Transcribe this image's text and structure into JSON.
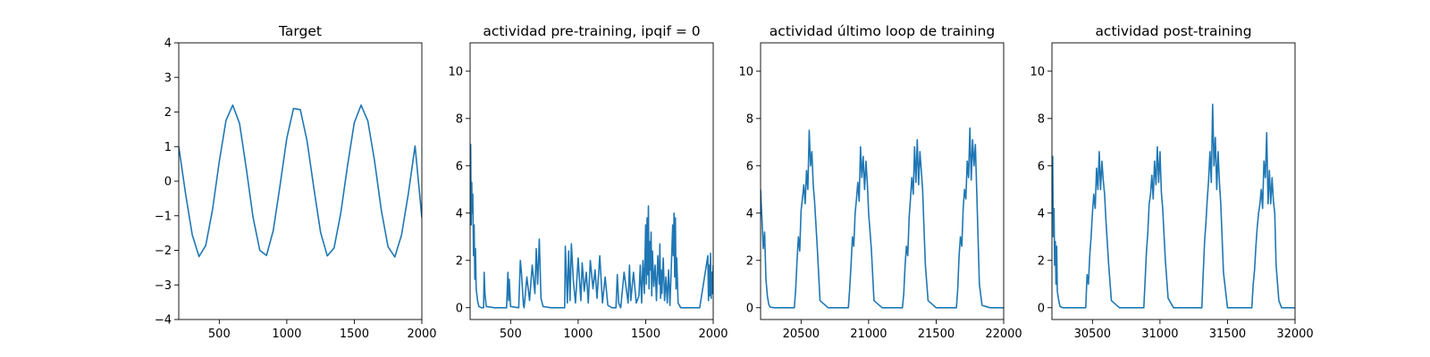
{
  "figure": {
    "background": "#ffffff",
    "line_color": "#1f77b4"
  },
  "chart_data": [
    {
      "type": "line",
      "title": "Target",
      "xlim": [
        200,
        2000
      ],
      "ylim": [
        -4,
        4
      ],
      "xticks": [
        500,
        1000,
        1500,
        2000
      ],
      "yticks": [
        -4,
        -3,
        -2,
        -1,
        0,
        1,
        2,
        3,
        4
      ],
      "xtick_labels": [
        "500",
        "1000",
        "1500",
        "2000"
      ],
      "ytick_labels": [
        "−4",
        "−3",
        "−2",
        "−1",
        "0",
        "1",
        "2",
        "3",
        "4"
      ],
      "grid": false,
      "legend": "none",
      "series": [
        {
          "x": [
            200,
            250,
            300,
            350,
            400,
            450,
            500,
            550,
            600,
            650,
            700,
            750,
            800,
            850,
            900,
            950,
            1000,
            1050,
            1100,
            1150,
            1200,
            1250,
            1300,
            1350,
            1400,
            1450,
            1500,
            1550,
            1600,
            1650,
            1700,
            1750,
            1800,
            1850,
            1900,
            1950,
            2000
          ],
          "y": [
            1.0,
            -0.36,
            -1.55,
            -2.18,
            -1.86,
            -0.82,
            0.56,
            1.76,
            2.2,
            1.67,
            0.36,
            -1.04,
            -2.0,
            -2.15,
            -1.42,
            -0.13,
            1.24,
            2.1,
            2.07,
            1.16,
            -0.19,
            -1.48,
            -2.16,
            -1.93,
            -0.92,
            0.46,
            1.69,
            2.2,
            1.74,
            0.58,
            -0.85,
            -1.9,
            -2.19,
            -1.55,
            -0.36,
            1.02,
            -1.05
          ]
        }
      ]
    },
    {
      "type": "line",
      "title": "actividad pre-training, ipqif = 0",
      "xlim": [
        200,
        2000
      ],
      "ylim": [
        -0.5,
        11.2
      ],
      "xticks": [
        500,
        1000,
        1500,
        2000
      ],
      "yticks": [
        0,
        2,
        4,
        6,
        8,
        10
      ],
      "xtick_labels": [
        "500",
        "1000",
        "1500",
        "2000"
      ],
      "ytick_labels": [
        "0",
        "2",
        "4",
        "6",
        "8",
        "10"
      ],
      "grid": false,
      "legend": "none",
      "series": [
        {
          "x": [
            200,
            204,
            208,
            212,
            216,
            220,
            225,
            230,
            235,
            240,
            245,
            255,
            265,
            285,
            300,
            304,
            310,
            320,
            380,
            400,
            470,
            480,
            485,
            490,
            500,
            560,
            572,
            580,
            595,
            600,
            620,
            640,
            660,
            680,
            690,
            700,
            712,
            725,
            740,
            800,
            900,
            905,
            912,
            920,
            930,
            940,
            950,
            965,
            980,
            1000,
            1020,
            1030,
            1045,
            1060,
            1075,
            1090,
            1110,
            1125,
            1140,
            1160,
            1180,
            1200,
            1220,
            1250,
            1280,
            1290,
            1300,
            1315,
            1340,
            1370,
            1380,
            1390,
            1410,
            1430,
            1450,
            1460,
            1470,
            1480,
            1490,
            1500,
            1505,
            1510,
            1515,
            1520,
            1525,
            1530,
            1535,
            1540,
            1545,
            1550,
            1560,
            1570,
            1580,
            1590,
            1600,
            1605,
            1610,
            1615,
            1620,
            1630,
            1640,
            1650,
            1660,
            1670,
            1680,
            1690,
            1700,
            1705,
            1710,
            1715,
            1720,
            1725,
            1730,
            1740,
            1760,
            1800,
            1900,
            1960,
            1965,
            1970,
            1975,
            1980,
            1985,
            1990,
            1995,
            2000
          ],
          "y": [
            5.5,
            6.9,
            3.5,
            5.3,
            4.0,
            4.8,
            2.2,
            3.5,
            1.2,
            2.5,
            0.8,
            0.3,
            0.05,
            0.0,
            0.0,
            1.5,
            0.6,
            0.05,
            0.0,
            0.0,
            0.0,
            1.5,
            0.3,
            1.2,
            0.05,
            0.0,
            2.0,
            1.5,
            0.1,
            0.0,
            1.3,
            0.3,
            1.8,
            0.6,
            2.5,
            1.0,
            2.9,
            0.4,
            0.05,
            0.0,
            0.0,
            2.6,
            1.6,
            0.2,
            2.4,
            0.3,
            2.7,
            1.1,
            0.2,
            2.1,
            0.3,
            1.9,
            0.7,
            1.5,
            0.2,
            2.0,
            0.8,
            1.6,
            0.4,
            2.2,
            0.2,
            1.3,
            0.1,
            0.0,
            0.0,
            1.4,
            0.2,
            0.0,
            1.5,
            0.2,
            1.8,
            0.3,
            1.5,
            0.2,
            0.5,
            1.8,
            0.2,
            2.0,
            0.6,
            3.5,
            1.0,
            3.8,
            1.4,
            4.3,
            0.8,
            2.8,
            1.6,
            3.2,
            0.5,
            2.4,
            0.9,
            1.8,
            0.3,
            2.2,
            1.0,
            2.7,
            0.4,
            1.6,
            0.6,
            2.1,
            0.3,
            1.3,
            0.2,
            1.6,
            0.1,
            1.8,
            3.5,
            2.2,
            4.0,
            1.3,
            3.8,
            0.8,
            2.1,
            0.2,
            0.0,
            0.0,
            0.0,
            2.2,
            0.3,
            1.8,
            0.5,
            2.3,
            0.4,
            1.5,
            0.6,
            1.8
          ]
        }
      ]
    },
    {
      "type": "line",
      "title": "actividad último loop de training",
      "xlim": [
        20200,
        22000
      ],
      "ylim": [
        -0.5,
        11.2
      ],
      "xticks": [
        20500,
        21000,
        21500,
        22000
      ],
      "yticks": [
        0,
        2,
        4,
        6,
        8,
        10
      ],
      "xtick_labels": [
        "20500",
        "21000",
        "21500",
        "22000"
      ],
      "ytick_labels": [
        "0",
        "2",
        "4",
        "6",
        "8",
        "10"
      ],
      "grid": false,
      "legend": "none",
      "series": [
        {
          "x": [
            20200,
            20205,
            20210,
            20220,
            20230,
            20240,
            20250,
            20260,
            20270,
            20300,
            20450,
            20460,
            20470,
            20480,
            20490,
            20500,
            20510,
            20520,
            20530,
            20540,
            20550,
            20560,
            20570,
            20580,
            20590,
            20600,
            20620,
            20640,
            20700,
            20850,
            20860,
            20870,
            20880,
            20890,
            20900,
            20910,
            20920,
            20930,
            20940,
            20950,
            20960,
            20970,
            20980,
            20990,
            21000,
            21020,
            21040,
            21100,
            21250,
            21260,
            21270,
            21280,
            21290,
            21300,
            21310,
            21320,
            21330,
            21340,
            21350,
            21360,
            21370,
            21380,
            21390,
            21400,
            21410,
            21420,
            21440,
            21500,
            21650,
            21660,
            21670,
            21680,
            21690,
            21700,
            21710,
            21720,
            21730,
            21740,
            21750,
            21760,
            21770,
            21780,
            21790,
            21800,
            21820,
            21840,
            21900,
            22000
          ],
          "y": [
            5.0,
            4.3,
            3.8,
            2.5,
            3.2,
            1.2,
            0.5,
            0.15,
            0.03,
            0.0,
            0.0,
            0.8,
            2.0,
            3.0,
            2.4,
            4.1,
            4.6,
            5.2,
            4.4,
            5.8,
            5.0,
            7.5,
            6.0,
            6.6,
            5.2,
            4.5,
            2.5,
            0.3,
            0.0,
            0.0,
            0.8,
            1.8,
            3.0,
            2.6,
            4.0,
            4.6,
            5.3,
            4.5,
            6.8,
            5.5,
            6.4,
            5.0,
            6.2,
            5.3,
            4.0,
            2.5,
            0.3,
            0.0,
            0.0,
            0.6,
            1.8,
            2.6,
            2.2,
            3.8,
            4.6,
            5.5,
            4.8,
            6.8,
            5.3,
            7.1,
            5.2,
            6.6,
            5.8,
            5.0,
            3.4,
            1.8,
            0.3,
            0.0,
            0.0,
            0.8,
            2.2,
            3.0,
            2.6,
            4.2,
            5.0,
            4.6,
            6.2,
            5.5,
            7.6,
            5.4,
            7.1,
            6.0,
            6.9,
            5.0,
            1.0,
            0.1,
            0.0,
            0.0
          ]
        }
      ]
    },
    {
      "type": "line",
      "title": "actividad post-training",
      "xlim": [
        30200,
        32000
      ],
      "ylim": [
        -0.5,
        11.2
      ],
      "xticks": [
        30500,
        31000,
        31500,
        32000
      ],
      "yticks": [
        0,
        2,
        4,
        6,
        8,
        10
      ],
      "xtick_labels": [
        "30500",
        "31000",
        "31500",
        "32000"
      ],
      "ytick_labels": [
        "0",
        "2",
        "4",
        "6",
        "8",
        "10"
      ],
      "grid": false,
      "legend": "none",
      "series": [
        {
          "x": [
            30200,
            30205,
            30210,
            30215,
            30220,
            30225,
            30230,
            30235,
            30240,
            30250,
            30260,
            30280,
            30450,
            30460,
            30470,
            30480,
            30490,
            30500,
            30510,
            30520,
            30530,
            30540,
            30550,
            30560,
            30570,
            30580,
            30590,
            30600,
            30620,
            30640,
            30700,
            30880,
            30890,
            30900,
            30910,
            30920,
            30930,
            30940,
            30950,
            30960,
            30970,
            30980,
            30990,
            31000,
            31010,
            31020,
            31040,
            31060,
            31100,
            31310,
            31320,
            31330,
            31340,
            31350,
            31360,
            31370,
            31380,
            31390,
            31400,
            31410,
            31420,
            31430,
            31440,
            31450,
            31470,
            31500,
            31680,
            31690,
            31700,
            31710,
            31720,
            31730,
            31740,
            31750,
            31760,
            31770,
            31780,
            31790,
            31800,
            31810,
            31820,
            31830,
            31840,
            31850,
            31860,
            31880,
            31900,
            32000
          ],
          "y": [
            4.8,
            6.4,
            3.0,
            4.2,
            1.8,
            2.8,
            1.0,
            2.6,
            0.7,
            0.3,
            0.05,
            0.0,
            0.0,
            1.4,
            1.0,
            2.2,
            3.0,
            4.0,
            4.8,
            4.2,
            5.9,
            5.0,
            6.6,
            5.0,
            6.2,
            5.4,
            4.8,
            3.7,
            1.8,
            0.3,
            0.0,
            0.0,
            1.2,
            2.4,
            3.2,
            4.4,
            4.8,
            5.6,
            4.6,
            6.2,
            5.2,
            6.8,
            5.3,
            6.6,
            4.9,
            4.2,
            2.0,
            0.4,
            0.0,
            0.0,
            1.4,
            2.8,
            3.6,
            4.6,
            5.4,
            6.6,
            5.3,
            8.6,
            6.0,
            7.2,
            5.0,
            6.6,
            5.3,
            4.4,
            1.5,
            0.0,
            0.0,
            1.0,
            1.6,
            2.6,
            3.4,
            4.0,
            4.4,
            5.0,
            4.2,
            6.2,
            5.5,
            7.4,
            4.4,
            5.8,
            4.4,
            5.5,
            4.5,
            4.0,
            1.8,
            0.3,
            0.0,
            0.0
          ]
        }
      ]
    }
  ]
}
